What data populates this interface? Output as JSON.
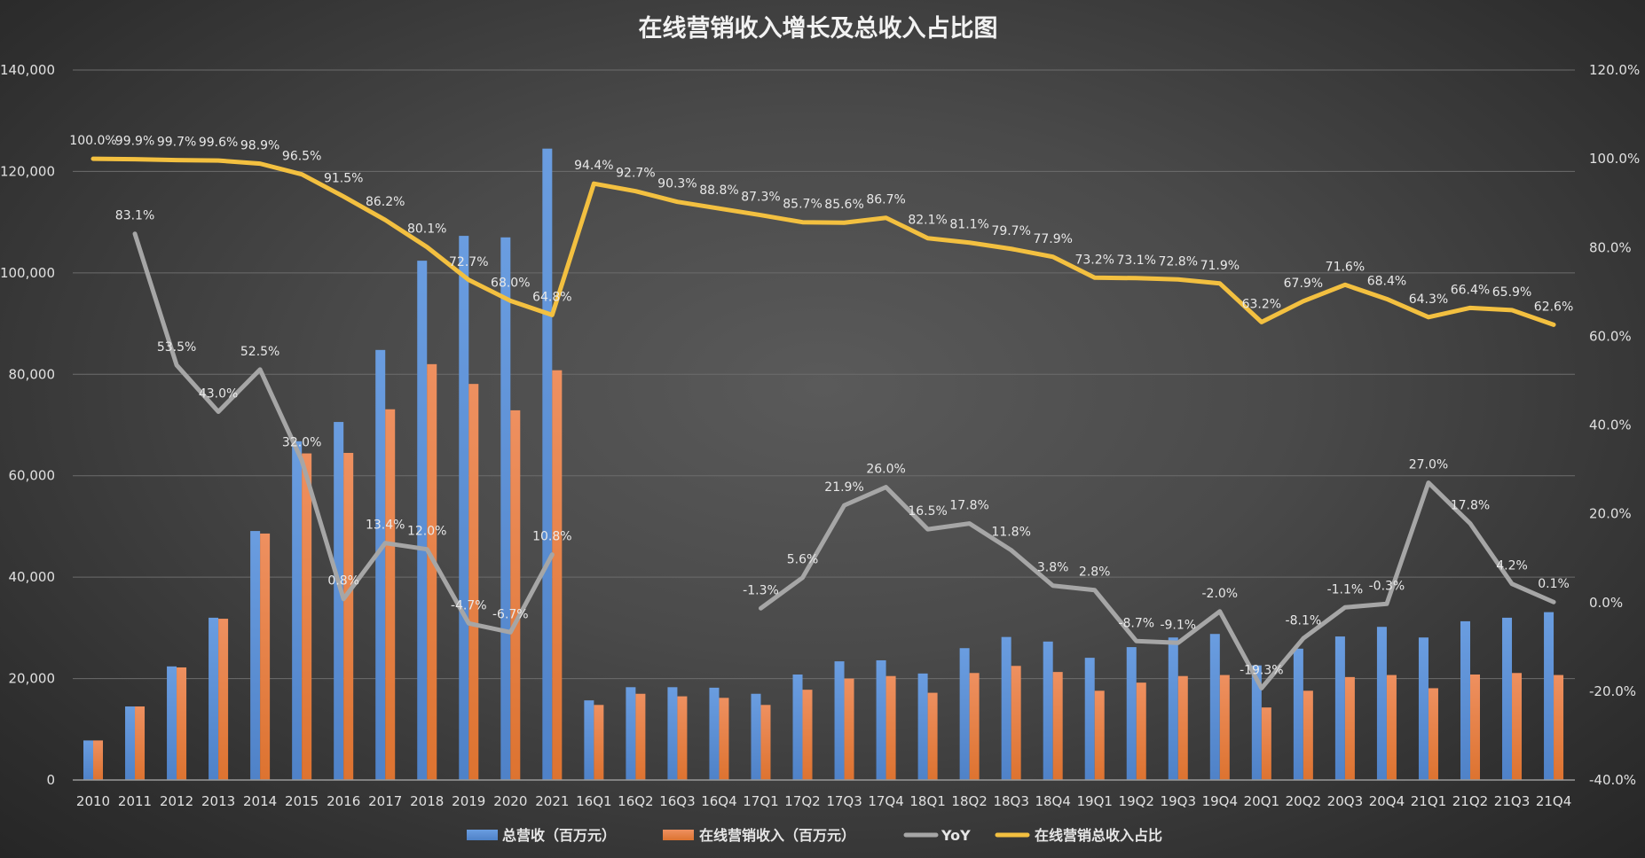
{
  "chart_data": {
    "type": "bar+line",
    "title": "在线营销收入增长及总收入占比图",
    "categories": [
      "2010",
      "2011",
      "2012",
      "2013",
      "2014",
      "2015",
      "2016",
      "2017",
      "2018",
      "2019",
      "2020",
      "2021",
      "16Q1",
      "16Q2",
      "16Q3",
      "16Q4",
      "17Q1",
      "17Q2",
      "17Q3",
      "17Q4",
      "18Q1",
      "18Q2",
      "18Q3",
      "18Q4",
      "19Q1",
      "19Q2",
      "19Q3",
      "19Q4",
      "20Q1",
      "20Q2",
      "20Q3",
      "20Q4",
      "21Q1",
      "21Q2",
      "21Q3",
      "21Q4"
    ],
    "ylim_left": [
      0,
      140000
    ],
    "ylim_right": [
      -40,
      120
    ],
    "left_tick_labels": [
      "0",
      "20,000",
      "40,000",
      "60,000",
      "80,000",
      "100,000",
      "120,000",
      "140,000"
    ],
    "right_tick_labels": [
      "-40.0%",
      "-20.0%",
      "0.0%",
      "20.0%",
      "40.0%",
      "60.0%",
      "80.0%",
      "100.0%",
      "120.0%"
    ],
    "grid": true,
    "legend_position": "bottom",
    "series": [
      {
        "name": "总营收（百万元）",
        "type": "bar",
        "axis": "left",
        "color": "#5b8fd4",
        "values": [
          7800,
          14500,
          22400,
          32000,
          49100,
          66800,
          70600,
          84800,
          102400,
          107300,
          107000,
          124500,
          15700,
          18300,
          18300,
          18200,
          17000,
          20800,
          23400,
          23600,
          21000,
          26000,
          28200,
          27300,
          24100,
          26200,
          28100,
          28800,
          22600,
          25900,
          28300,
          30200,
          28100,
          31300,
          32000,
          33100
        ]
      },
      {
        "name": "在线营销收入（百万元）",
        "type": "bar",
        "axis": "left",
        "color": "#e47c3c",
        "values": [
          7800,
          14500,
          22200,
          31800,
          48600,
          64400,
          64500,
          73100,
          82000,
          78100,
          72900,
          80800,
          14800,
          17000,
          16500,
          16200,
          14800,
          17800,
          20000,
          20500,
          17200,
          21100,
          22500,
          21300,
          17600,
          19200,
          20500,
          20700,
          14300,
          17600,
          20300,
          20700,
          18100,
          20800,
          21100,
          20700
        ]
      },
      {
        "name": "YoY",
        "type": "line",
        "axis": "right",
        "color": "#a6a6a6",
        "values": [
          null,
          83.1,
          53.5,
          43.0,
          52.5,
          32.0,
          0.8,
          13.4,
          12.0,
          -4.7,
          -6.7,
          10.8,
          null,
          null,
          null,
          null,
          -1.3,
          5.6,
          21.9,
          26.0,
          16.5,
          17.8,
          11.8,
          3.8,
          2.8,
          -8.7,
          -9.1,
          -2.0,
          -19.3,
          -8.1,
          -1.1,
          -0.3,
          27.0,
          17.8,
          4.2,
          0.1
        ],
        "labels": [
          null,
          "83.1%",
          "53.5%",
          "43.0%",
          "52.5%",
          "32.0%",
          "0.8%",
          "13.4%",
          "12.0%",
          "-4.7%",
          "-6.7%",
          "10.8%",
          null,
          null,
          null,
          null,
          "-1.3%",
          "5.6%",
          "21.9%",
          "26.0%",
          "16.5%",
          "17.8%",
          "11.8%",
          "3.8%",
          "2.8%",
          "-8.7%",
          "-9.1%",
          "-2.0%",
          "-19.3%",
          "-8.1%",
          "-1.1%",
          "-0.3%",
          "27.0%",
          "17.8%",
          "4.2%",
          "0.1%"
        ]
      },
      {
        "name": "在线营销总收入占比",
        "type": "line",
        "axis": "right",
        "color": "#f3c040",
        "values": [
          100.0,
          99.9,
          99.7,
          99.6,
          98.9,
          96.5,
          91.5,
          86.2,
          80.1,
          72.7,
          68.0,
          64.8,
          94.4,
          92.7,
          90.3,
          88.8,
          87.3,
          85.7,
          85.6,
          86.7,
          82.1,
          81.1,
          79.7,
          77.9,
          73.2,
          73.1,
          72.8,
          71.9,
          63.2,
          67.9,
          71.6,
          68.4,
          64.3,
          66.4,
          65.9,
          62.6
        ],
        "labels": [
          "100.0%",
          "99.9%",
          "99.7%",
          "99.6%",
          "98.9%",
          "96.5%",
          "91.5%",
          "86.2%",
          "80.1%",
          "72.7%",
          "68.0%",
          "64.8%",
          "94.4%",
          "92.7%",
          "90.3%",
          "88.8%",
          "87.3%",
          "85.7%",
          "85.6%",
          "86.7%",
          "82.1%",
          "81.1%",
          "79.7%",
          "77.9%",
          "73.2%",
          "73.1%",
          "72.8%",
          "71.9%",
          "63.2%",
          "67.9%",
          "71.6%",
          "68.4%",
          "64.3%",
          "66.4%",
          "65.9%",
          "62.6%"
        ]
      }
    ]
  }
}
